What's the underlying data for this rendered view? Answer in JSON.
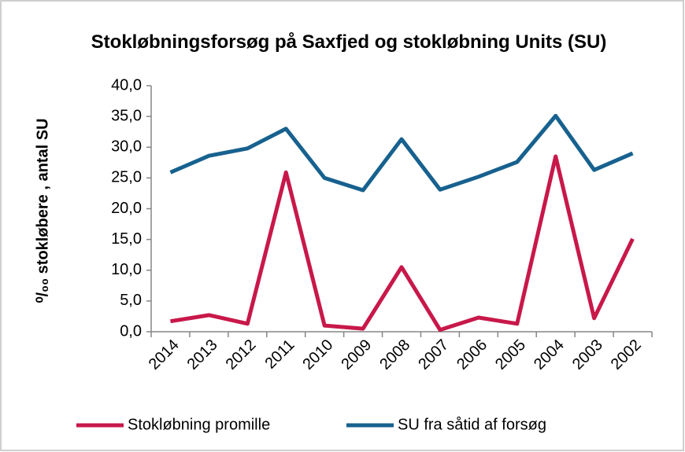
{
  "chart_data": {
    "type": "line",
    "title": "Stokløbningsforsøg på Saxfjed og stokløbning Units (SU)",
    "y_label": "⁰/₀₀ stokløbere , antal SU",
    "categories": [
      "2014",
      "2013",
      "2012",
      "2011",
      "2010",
      "2009",
      "2008",
      "2007",
      "2006",
      "2005",
      "2004",
      "2003",
      "2002"
    ],
    "series": [
      {
        "name": "Stokløbning promille",
        "color": "#c8184a",
        "values": [
          1.7,
          2.7,
          1.3,
          25.9,
          1.0,
          0.5,
          10.5,
          0.3,
          2.3,
          1.3,
          28.5,
          2.2,
          15.1
        ]
      },
      {
        "name": "SU fra såtid af forsøg",
        "color": "#17618f",
        "values": [
          25.9,
          28.6,
          29.8,
          33.0,
          25.0,
          23.0,
          31.3,
          23.1,
          25.2,
          27.6,
          35.1,
          26.3,
          29.0
        ]
      }
    ],
    "ylim": [
      0,
      40
    ],
    "yticks": [
      {
        "value": 0,
        "label": "0,0"
      },
      {
        "value": 5,
        "label": "5,0"
      },
      {
        "value": 10,
        "label": "10,0"
      },
      {
        "value": 15,
        "label": "15,0"
      },
      {
        "value": 20,
        "label": "20,0"
      },
      {
        "value": 25,
        "label": "25,0"
      },
      {
        "value": 30,
        "label": "30,0"
      },
      {
        "value": 35,
        "label": "35,0"
      },
      {
        "value": 40,
        "label": "40,0"
      }
    ],
    "grid": false,
    "legend": "bottom"
  }
}
